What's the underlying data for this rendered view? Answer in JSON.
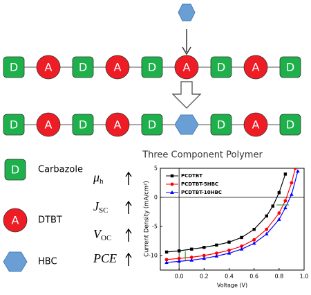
{
  "chain_1": [
    "D",
    "A",
    "D",
    "A",
    "D",
    "A",
    "D",
    "A",
    "D"
  ],
  "chain_2": [
    "D",
    "A",
    "D",
    "A",
    "D",
    null,
    "D",
    "A",
    "D"
  ],
  "legend": [
    {
      "label": "D",
      "text": "Carbazole"
    },
    {
      "label": "A",
      "text": "DTBT"
    },
    {
      "label": null,
      "text": "HBC"
    }
  ],
  "properties": [
    {
      "symbol": "μ",
      "subscript": "h"
    },
    {
      "symbol": "J",
      "subscript": "SC"
    },
    {
      "symbol": "V",
      "subscript": "OC"
    },
    {
      "symbol": "PCE",
      "subscript": null
    }
  ],
  "chart_data": {
    "type": "line",
    "title": "Three Component Polymer",
    "x_label": "Voltage (V)",
    "y_label": "Current Density (mA/cm²)",
    "xlim": [
      -0.15,
      1.0
    ],
    "ylim": [
      -12.5,
      5
    ],
    "xticks": [
      {
        "value": 0,
        "label": "0.0"
      },
      {
        "value": 0.2,
        "label": "0.2"
      },
      {
        "value": 0.4,
        "label": "0.4"
      },
      {
        "value": 0.6,
        "label": "0.6"
      },
      {
        "value": 0.8,
        "label": "0.8"
      },
      {
        "value": 1,
        "label": "1.0"
      }
    ],
    "yticks": [
      5,
      0,
      -5,
      -10
    ],
    "series": [
      {
        "name": "PCDTBT",
        "color": "#000000",
        "marker": "square",
        "x": [
          -0.1,
          0,
          0.1,
          0.2,
          0.3,
          0.4,
          0.5,
          0.6,
          0.7,
          0.75,
          0.8,
          0.85
        ],
        "y": [
          -9.4,
          -9.2,
          -8.9,
          -8.6,
          -8.2,
          -7.7,
          -6.9,
          -5.5,
          -3.2,
          -1.5,
          0.8,
          4
        ]
      },
      {
        "name": "PCDTBT-5HBC",
        "color": "#ff0000",
        "marker": "circle",
        "x": [
          -0.1,
          0,
          0.1,
          0.2,
          0.3,
          0.4,
          0.5,
          0.6,
          0.7,
          0.8,
          0.85,
          0.9,
          0.93
        ],
        "y": [
          -10.7,
          -10.5,
          -10.3,
          -10,
          -9.6,
          -9.1,
          -8.4,
          -7.3,
          -5.5,
          -2.7,
          -0.6,
          2.5,
          5
        ]
      },
      {
        "name": "PCDTBT-10HBC",
        "color": "#0000ff",
        "marker": "triangle",
        "x": [
          -0.1,
          0,
          0.1,
          0.2,
          0.3,
          0.4,
          0.5,
          0.6,
          0.7,
          0.8,
          0.85,
          0.9,
          0.95
        ],
        "y": [
          -11.2,
          -11,
          -10.8,
          -10.5,
          -10.1,
          -9.6,
          -8.9,
          -7.9,
          -6.3,
          -3.8,
          -1.8,
          0.5,
          4.5
        ]
      }
    ]
  }
}
